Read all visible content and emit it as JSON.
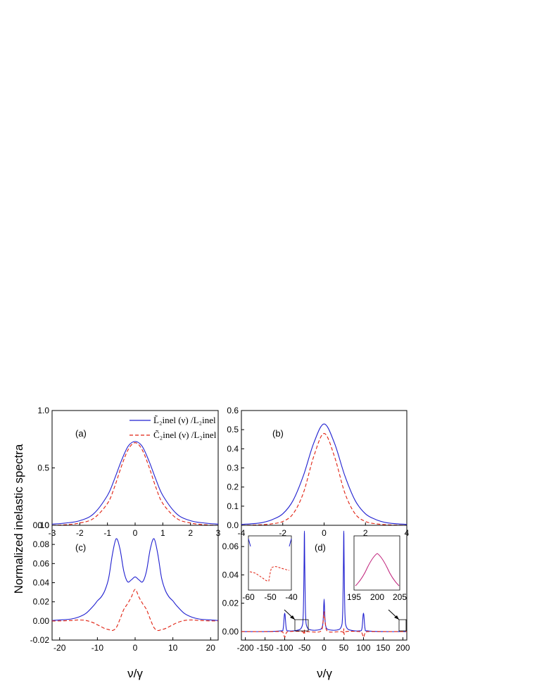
{
  "figure": {
    "ylabel": "Normalized inelastic spectra",
    "xlabel_c": "ν/γ",
    "xlabel_d": "ν/γ"
  },
  "legend": {
    "entries": [
      {
        "label": "L̃₂inel (ν) /L₂inel",
        "color": "#2020d0",
        "dash": "solid"
      },
      {
        "label": "C̃₂inel (ν) /L₂inel",
        "color": "#e02010",
        "dash": "dashed"
      }
    ]
  },
  "chart_data": [
    {
      "type": "line",
      "panel_label": "(a)",
      "xlim": [
        -3,
        3
      ],
      "ylim": [
        0,
        1.0
      ],
      "xticks": [
        "-3",
        "-2",
        "-1",
        "0",
        "1",
        "2",
        "3"
      ],
      "yticks": [
        "0.0",
        "0.5",
        "1.0"
      ],
      "series": [
        {
          "name": "L̃₂inel (ν) /L₂inel",
          "x": [
            -3,
            -2.5,
            -2,
            -1.5,
            -1,
            -0.75,
            -0.5,
            -0.25,
            0,
            0.25,
            0.5,
            0.75,
            1,
            1.5,
            2,
            2.5,
            3
          ],
          "y": [
            0.01,
            0.02,
            0.04,
            0.1,
            0.26,
            0.4,
            0.56,
            0.69,
            0.73,
            0.69,
            0.56,
            0.4,
            0.26,
            0.1,
            0.04,
            0.02,
            0.01
          ]
        },
        {
          "name": "C̃₂inel (ν) /L₂inel",
          "x": [
            -3,
            -2.5,
            -2,
            -1.5,
            -1,
            -0.75,
            -0.5,
            -0.25,
            0,
            0.25,
            0.5,
            0.75,
            1,
            1.5,
            2,
            2.5,
            3
          ],
          "y": [
            0,
            0.005,
            0.02,
            0.06,
            0.19,
            0.33,
            0.51,
            0.66,
            0.72,
            0.66,
            0.51,
            0.33,
            0.19,
            0.06,
            0.02,
            0.005,
            0
          ]
        }
      ]
    },
    {
      "type": "line",
      "panel_label": "(b)",
      "xlim": [
        -4,
        4
      ],
      "ylim": [
        0,
        0.6
      ],
      "xticks": [
        "-4",
        "-2",
        "0",
        "2",
        "4"
      ],
      "yticks": [
        "0.0",
        "0.1",
        "0.2",
        "0.3",
        "0.4",
        "0.5",
        "0.6"
      ],
      "series": [
        {
          "name": "L̃₂inel (ν) /L₂inel",
          "x": [
            -4,
            -3.5,
            -3,
            -2.5,
            -2,
            -1.5,
            -1,
            -0.5,
            0,
            0.5,
            1,
            1.5,
            2,
            2.5,
            3,
            3.5,
            4
          ],
          "y": [
            0.005,
            0.008,
            0.014,
            0.03,
            0.06,
            0.13,
            0.26,
            0.43,
            0.53,
            0.43,
            0.26,
            0.13,
            0.06,
            0.03,
            0.014,
            0.008,
            0.005
          ]
        },
        {
          "name": "C̃₂inel (ν) /L₂inel",
          "x": [
            -4,
            -3.5,
            -3,
            -2.5,
            -2,
            -1.5,
            -1,
            -0.5,
            0,
            0.5,
            1,
            1.5,
            2,
            2.5,
            3,
            3.5,
            4
          ],
          "y": [
            0,
            0.001,
            0.003,
            0.008,
            0.02,
            0.06,
            0.17,
            0.36,
            0.48,
            0.36,
            0.17,
            0.06,
            0.02,
            0.008,
            0.003,
            0.001,
            0
          ]
        }
      ]
    },
    {
      "type": "line",
      "panel_label": "(c)",
      "xlim": [
        -22,
        22
      ],
      "ylim": [
        -0.02,
        0.1
      ],
      "xticks": [
        "-20",
        "-10",
        "0",
        "10",
        "20"
      ],
      "yticks": [
        "-0.02",
        "0.00",
        "0.02",
        "0.04",
        "0.06",
        "0.08",
        "0.10"
      ],
      "series": [
        {
          "name": "L̃₂inel (ν) /L₂inel",
          "x": [
            -22,
            -20,
            -17,
            -15,
            -13,
            -11,
            -10,
            -9,
            -8,
            -7,
            -6,
            -5,
            -4,
            -3,
            -2,
            -1,
            0,
            1,
            2,
            3,
            4,
            5,
            6,
            7,
            8,
            9,
            10,
            11,
            13,
            15,
            17,
            20,
            22
          ],
          "y": [
            0.0005,
            0.001,
            0.002,
            0.004,
            0.008,
            0.016,
            0.021,
            0.025,
            0.032,
            0.045,
            0.07,
            0.086,
            0.075,
            0.052,
            0.041,
            0.043,
            0.046,
            0.043,
            0.041,
            0.052,
            0.075,
            0.086,
            0.07,
            0.045,
            0.032,
            0.025,
            0.021,
            0.016,
            0.008,
            0.004,
            0.002,
            0.001,
            0.0005
          ]
        },
        {
          "name": "C̃₂inel (ν) /L₂inel",
          "x": [
            -22,
            -20,
            -17,
            -15,
            -13,
            -11,
            -10,
            -9,
            -8,
            -7,
            -6,
            -5,
            -4,
            -3,
            -2,
            -1,
            0,
            1,
            2,
            3,
            4,
            5,
            6,
            7,
            8,
            9,
            10,
            11,
            13,
            15,
            17,
            20,
            22
          ],
          "y": [
            0,
            0,
            0.0005,
            0.001,
            0.0005,
            -0.002,
            -0.004,
            -0.006,
            -0.008,
            -0.009,
            -0.01,
            -0.007,
            0.002,
            0.012,
            0.018,
            0.025,
            0.033,
            0.025,
            0.018,
            0.012,
            0.002,
            -0.007,
            -0.01,
            -0.009,
            -0.008,
            -0.006,
            -0.004,
            -0.002,
            0.0005,
            0.001,
            0.0005,
            0,
            0
          ]
        }
      ]
    },
    {
      "type": "line",
      "panel_label": "(d)",
      "xlim": [
        -210,
        210
      ],
      "ylim": [
        -0.006,
        0.075
      ],
      "xticks": [
        "-200",
        "-150",
        "-100",
        "-50",
        "0",
        "50",
        "100",
        "150",
        "200"
      ],
      "yticks": [
        "0.00",
        "0.02",
        "0.04",
        "0.06"
      ],
      "series": [
        {
          "name": "L̃₂inel (ν) /L₂inel",
          "x": [
            -210,
            -150,
            -110,
            -104,
            -100,
            -96,
            -90,
            -70,
            -57,
            -53,
            -51,
            -50,
            -49,
            -47,
            -43,
            -30,
            -10,
            -4,
            -2,
            0,
            2,
            4,
            10,
            30,
            43,
            47,
            49,
            50,
            51,
            53,
            57,
            70,
            90,
            96,
            100,
            104,
            110,
            150,
            210
          ],
          "y": [
            0,
            0,
            0.0005,
            0.002,
            0.013,
            0.002,
            0.0005,
            0.0008,
            0.003,
            0.012,
            0.045,
            0.071,
            0.045,
            0.012,
            0.003,
            0.001,
            0.0015,
            0.004,
            0.01,
            0.023,
            0.01,
            0.004,
            0.0015,
            0.001,
            0.003,
            0.012,
            0.045,
            0.071,
            0.045,
            0.012,
            0.003,
            0.0008,
            0.0005,
            0.002,
            0.013,
            0.002,
            0.0005,
            0,
            0
          ]
        },
        {
          "name": "C̃₂inel (ν) /L₂inel",
          "x": [
            -210,
            -150,
            -110,
            -104,
            -100,
            -96,
            -90,
            -56,
            -51,
            -50,
            -49,
            -44,
            -10,
            -3,
            0,
            3,
            10,
            44,
            49,
            50,
            51,
            56,
            90,
            96,
            100,
            104,
            110,
            150,
            210
          ],
          "y": [
            0,
            0,
            0,
            -0.001,
            -0.004,
            -0.001,
            0,
            0,
            -0.002,
            0.002,
            -0.001,
            0,
            0,
            0.006,
            0.014,
            0.006,
            0,
            0,
            -0.001,
            0.002,
            -0.002,
            0,
            0,
            -0.001,
            -0.004,
            -0.001,
            0,
            0,
            0
          ]
        }
      ],
      "insets": [
        {
          "xlim": [
            -60,
            -40
          ],
          "xticks": [
            "-60",
            "-50",
            "-40"
          ]
        },
        {
          "xlim": [
            195,
            205
          ],
          "xticks": [
            "195",
            "200",
            "205"
          ]
        }
      ]
    }
  ]
}
